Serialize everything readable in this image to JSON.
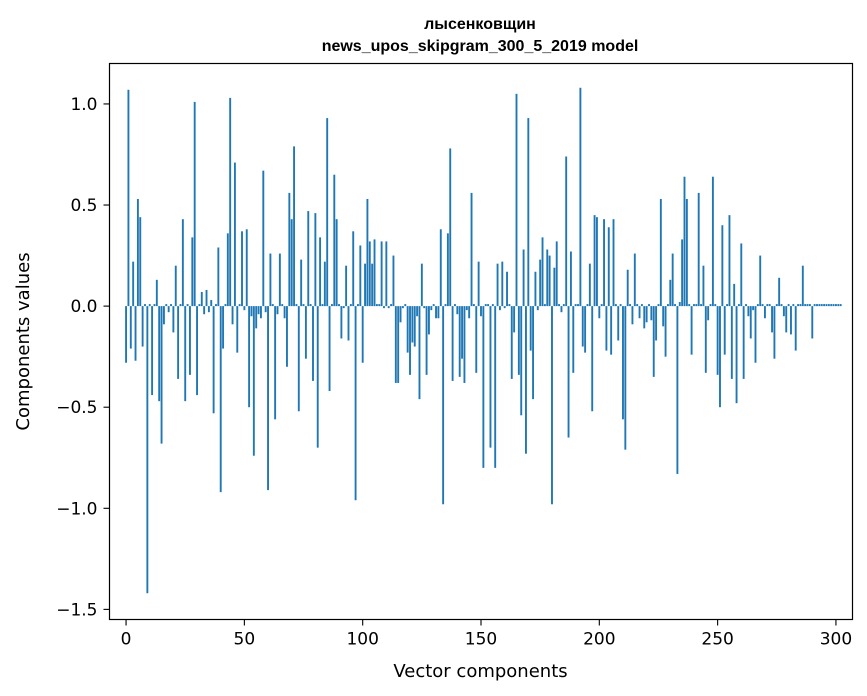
{
  "chart_data": {
    "type": "bar",
    "title": "лысенковщин",
    "subtitle": "news_upos_skipgram_300_5_2019 model",
    "xlabel": "Vector components",
    "ylabel": "Components values",
    "xlim": [
      -7,
      307
    ],
    "ylim": [
      -1.55,
      1.2
    ],
    "xticks": [
      0,
      50,
      100,
      150,
      200,
      250,
      300
    ],
    "xtick_labels": [
      "0",
      "50",
      "100",
      "150",
      "200",
      "250",
      "300"
    ],
    "yticks": [
      -1.5,
      -1.0,
      -0.5,
      0.0,
      0.5,
      1.0
    ],
    "ytick_labels": [
      "−1.5",
      "−1.0",
      "−0.5",
      "0.0",
      "0.5",
      "1.0"
    ],
    "grid": false,
    "bar_color": "#1f77b4",
    "x_start": 0,
    "values": [
      -0.28,
      1.07,
      -0.21,
      0.22,
      -0.27,
      0.53,
      0.44,
      -0.2,
      0.01,
      -1.42,
      0.01,
      -0.44,
      0.01,
      0.13,
      -0.47,
      -0.68,
      -0.09,
      0.01,
      -0.03,
      0.01,
      -0.13,
      0.2,
      -0.36,
      0.01,
      0.43,
      -0.47,
      0.01,
      -0.34,
      0.34,
      1.01,
      -0.44,
      0.01,
      0.07,
      -0.04,
      0.08,
      -0.03,
      0.03,
      -0.53,
      0.01,
      0.29,
      -0.92,
      -0.21,
      0.01,
      0.36,
      1.03,
      -0.09,
      0.71,
      -0.23,
      0.01,
      0.37,
      -0.02,
      0.38,
      -0.5,
      -0.05,
      -0.74,
      -0.11,
      -0.04,
      -0.06,
      0.67,
      -0.03,
      -0.91,
      0.26,
      0.01,
      -0.56,
      -0.04,
      0.26,
      0.01,
      -0.06,
      -0.3,
      0.56,
      0.43,
      0.79,
      0.01,
      -0.52,
      0.23,
      0.01,
      -0.26,
      0.47,
      0.01,
      -0.37,
      0.46,
      -0.7,
      0.34,
      0.01,
      0.22,
      0.93,
      -0.42,
      0.01,
      0.65,
      0.43,
      0.01,
      -0.16,
      -0.01,
      0.2,
      -0.17,
      0.01,
      0.37,
      -0.96,
      0.01,
      0.3,
      -0.28,
      0.21,
      0.53,
      0.32,
      0.21,
      0.33,
      0.01,
      0.01,
      0.32,
      -0.01,
      0.32,
      -0.01,
      0.01,
      0.25,
      -0.38,
      -0.38,
      -0.08,
      -0.01,
      0.01,
      -0.23,
      -0.34,
      -0.18,
      -0.2,
      -0.05,
      -0.46,
      0.21,
      -0.01,
      -0.34,
      -0.14,
      -0.02,
      0.01,
      -0.06,
      -0.06,
      0.38,
      -0.98,
      0.01,
      0.36,
      0.78,
      -0.37,
      0.01,
      -0.04,
      -0.35,
      -0.26,
      -0.38,
      -0.02,
      -0.06,
      0.56,
      0.01,
      -0.33,
      0.22,
      -0.05,
      -0.8,
      0.01,
      0.01,
      -0.7,
      0.01,
      -0.8,
      0.21,
      -0.02,
      0.22,
      -0.01,
      0.17,
      0.01,
      -0.36,
      -0.13,
      1.05,
      -0.34,
      -0.54,
      0.28,
      -0.73,
      0.93,
      -0.22,
      -0.46,
      0.17,
      -0.02,
      0.23,
      0.34,
      0.01,
      0.28,
      0.25,
      -0.98,
      0.19,
      0.32,
      0.01,
      -0.03,
      0.01,
      0.74,
      -0.65,
      0.27,
      -0.33,
      0.01,
      0.01,
      1.08,
      -0.2,
      -0.23,
      0.01,
      0.21,
      -0.52,
      0.45,
      0.44,
      -0.06,
      0.01,
      0.43,
      -0.22,
      0.39,
      -0.24,
      0.43,
      0.01,
      -0.17,
      0.01,
      -0.56,
      -0.71,
      0.18,
      0.01,
      -0.09,
      0.26,
      0.01,
      -0.06,
      0.01,
      -0.11,
      -0.08,
      0.01,
      -0.07,
      -0.35,
      -0.17,
      0.01,
      0.53,
      -0.1,
      -0.25,
      0.01,
      0.13,
      0.26,
      0.01,
      -0.83,
      0.02,
      0.33,
      0.64,
      0.53,
      0.01,
      -0.24,
      0.01,
      0.01,
      0.56,
      0.01,
      0.2,
      -0.33,
      -0.07,
      0.01,
      0.64,
      0.01,
      -0.34,
      -0.5,
      0.4,
      -0.24,
      0.01,
      0.45,
      -0.36,
      0.11,
      -0.48,
      0.01,
      0.31,
      -0.36,
      0.01,
      -0.05,
      -0.16,
      -0.02,
      -0.28,
      0.01,
      0.25,
      0.01,
      -0.06,
      0.01,
      0.01,
      -0.13,
      -0.26,
      0.01,
      0.14,
      0.01,
      -0.05,
      -0.13,
      0.01,
      -0.14,
      0.01,
      -0.22,
      0.01,
      0.01,
      0.2,
      0.01,
      0.01,
      0.01,
      -0.16,
      0.01,
      0.01,
      0.01,
      0.01,
      0.01,
      0.01,
      0.01,
      0.01,
      0.01,
      0.01,
      0.01,
      0.01
    ]
  }
}
